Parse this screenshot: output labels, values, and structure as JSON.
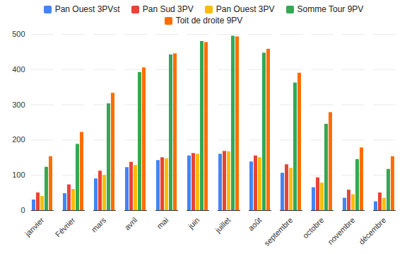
{
  "chart_data": {
    "type": "bar",
    "categories": [
      "janvier",
      "Février",
      "mars",
      "avril",
      "mai",
      "juin",
      "juillet",
      "août",
      "septembre",
      "octobre",
      "novembre",
      "décembre"
    ],
    "series": [
      {
        "name": "Pan Ouest 3PVst",
        "color": "#4285f4",
        "values": [
          30,
          48,
          90,
          122,
          142,
          155,
          160,
          138,
          106,
          65,
          35,
          25
        ]
      },
      {
        "name": "Pan Sud 3PV",
        "color": "#ea4335",
        "values": [
          50,
          73,
          112,
          137,
          150,
          162,
          168,
          155,
          130,
          93,
          58,
          50
        ]
      },
      {
        "name": "Pan Ouest 3PV",
        "color": "#fbbc04",
        "values": [
          40,
          60,
          100,
          128,
          147,
          160,
          167,
          150,
          120,
          78,
          45,
          35
        ]
      },
      {
        "name": "Somme Tour 9PV",
        "color": "#34a853",
        "values": [
          123,
          188,
          303,
          392,
          442,
          480,
          495,
          447,
          362,
          245,
          145,
          117
        ]
      },
      {
        "name": "Toit de droite 9PV",
        "color": "#ff6d01",
        "values": [
          153,
          222,
          333,
          405,
          445,
          477,
          493,
          458,
          390,
          278,
          178,
          153
        ]
      }
    ],
    "ylim": [
      0,
      500
    ],
    "yticks": [
      0,
      100,
      200,
      300,
      400,
      500
    ],
    "grid": true,
    "legend": "top"
  }
}
